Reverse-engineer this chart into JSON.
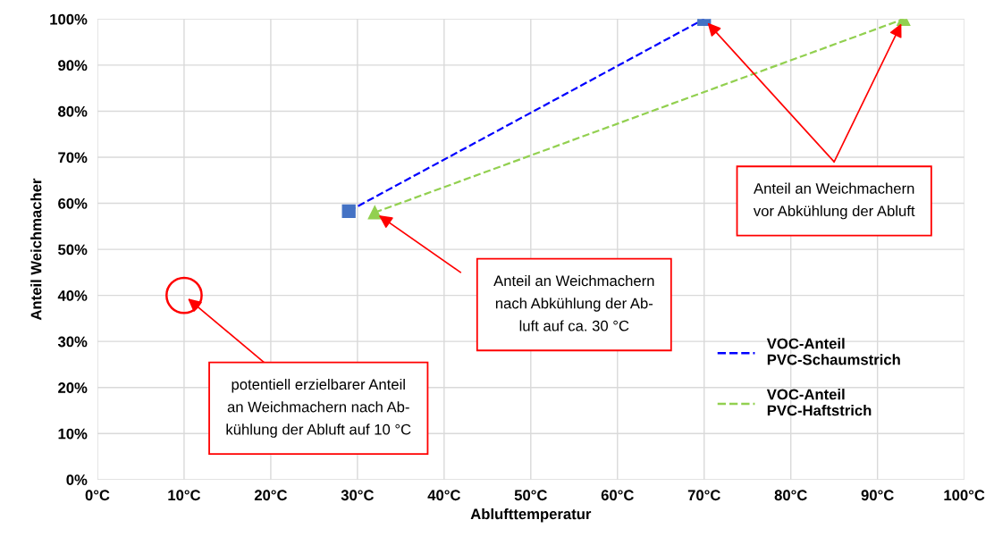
{
  "chart_data": {
    "type": "line",
    "xlabel": "Ablufttemperatur",
    "ylabel": "Anteil Weichmacher",
    "series": [
      {
        "name": "VOC-Anteil\nPVC-Schaumstrich",
        "color": "#0000ff",
        "x": [
          29,
          70
        ],
        "values": [
          58.3,
          100
        ],
        "marker": "square",
        "line_style": "dashed"
      },
      {
        "name": "VOC-Anteil\nPVC-Haftstrich",
        "color": "#92d050",
        "x": [
          32,
          93
        ],
        "values": [
          58,
          100
        ],
        "marker": "triangle",
        "line_style": "dashed"
      },
      {
        "type": "scatter",
        "color": "#ff0000",
        "x": [
          10
        ],
        "values": [
          40
        ],
        "marker": "circle"
      }
    ],
    "xlim": [
      0,
      100
    ],
    "xticks": [
      {
        "value": 0,
        "label": "0°C"
      },
      {
        "value": 10,
        "label": "10°C"
      },
      {
        "value": 20,
        "label": "20°C"
      },
      {
        "value": 30,
        "label": "30°C"
      },
      {
        "value": 40,
        "label": "40°C"
      },
      {
        "value": 50,
        "label": "50°C"
      },
      {
        "value": 60,
        "label": "60°C"
      },
      {
        "value": 70,
        "label": "70°C"
      },
      {
        "value": 80,
        "label": "80°C"
      },
      {
        "value": 90,
        "label": "90°C"
      },
      {
        "value": 100,
        "label": "100°C"
      }
    ],
    "ylim": [
      0,
      100
    ],
    "yticks": [
      {
        "value": 0,
        "label": "0%"
      },
      {
        "value": 10,
        "label": "10%"
      },
      {
        "value": 20,
        "label": "20%"
      },
      {
        "value": 30,
        "label": "30%"
      },
      {
        "value": 40,
        "label": "40%"
      },
      {
        "value": 50,
        "label": "50%"
      },
      {
        "value": 60,
        "label": "60%"
      },
      {
        "value": 70,
        "label": "70%"
      },
      {
        "value": 80,
        "label": "80%"
      },
      {
        "value": 90,
        "label": "90%"
      },
      {
        "value": 100,
        "label": "100%"
      }
    ],
    "grid": true,
    "legend": "right",
    "annotations": [
      {
        "text": "potentiell erzielbarer Anteil\nan Weichmachern nach Ab-\nkühlung der Abluft auf 10 °C",
        "x": 10,
        "y": 40
      },
      "Anteil an Weichmachern\nnach Abkühlung der Ab-\nluft auf ca. 30 °C",
      "Anteil an Weichmachern\nvor Abkühlung der Abluft"
    ]
  }
}
